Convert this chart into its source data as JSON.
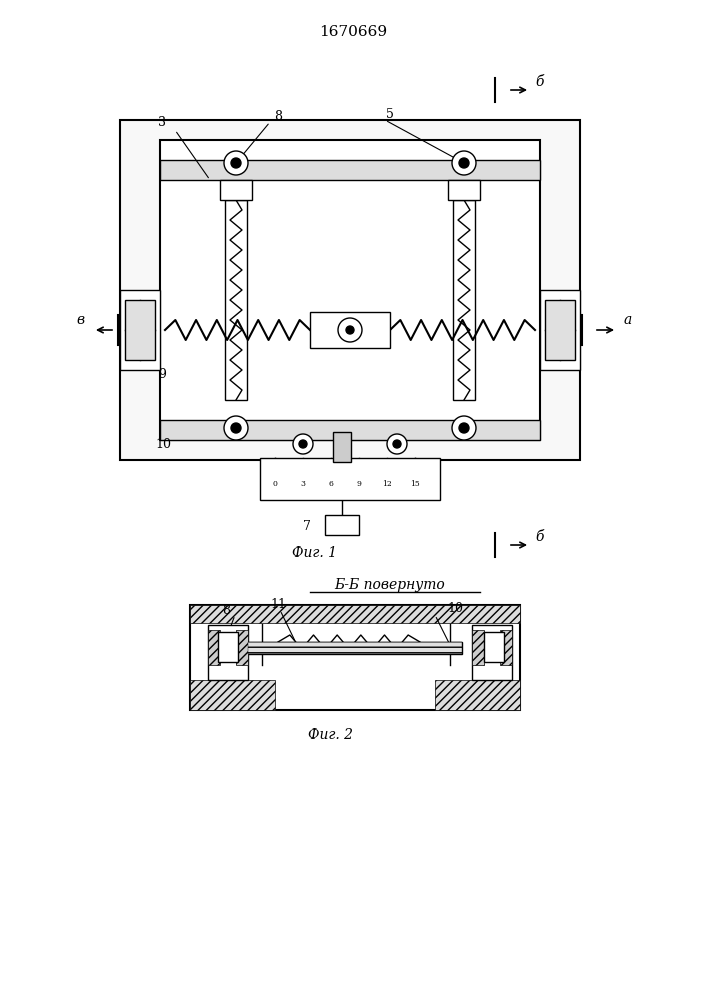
{
  "title": "1670669",
  "fig1_label": "Фиг. 1",
  "fig2_label": "Фиг. 2",
  "fig2_title": "Б-Б повернуто",
  "bg_color": "#ffffff",
  "line_color": "#000000",
  "hatch_color": "#555555",
  "label_color": "#000000"
}
